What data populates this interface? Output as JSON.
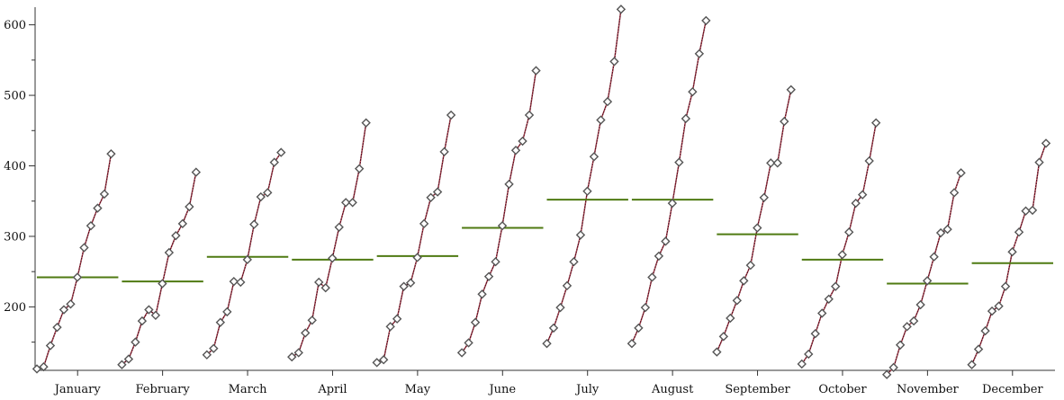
{
  "chart_data": {
    "type": "line",
    "title": "",
    "xlabel": "",
    "ylabel": "",
    "ylim": [
      110,
      625
    ],
    "y_ticks": [
      200,
      300,
      400,
      500,
      600
    ],
    "y_minor_ticks": [
      150,
      250,
      350,
      450,
      550
    ],
    "grid": false,
    "categories": [
      "January",
      "February",
      "March",
      "April",
      "May",
      "June",
      "July",
      "August",
      "September",
      "October",
      "November",
      "December"
    ],
    "colors": {
      "line": "#5a0a1e",
      "mean": "#4f7a12",
      "marker": "#555555"
    },
    "series": [
      {
        "values": [
          112,
          115,
          145,
          171,
          196,
          204,
          242,
          284,
          315,
          340,
          360,
          417
        ],
        "mean": 242
      },
      {
        "values": [
          118,
          126,
          150,
          180,
          196,
          188,
          233,
          277,
          301,
          318,
          342,
          391
        ],
        "mean": 236
      },
      {
        "values": [
          132,
          141,
          178,
          193,
          236,
          235,
          267,
          317,
          356,
          362,
          405,
          419
        ],
        "mean": 271
      },
      {
        "values": [
          129,
          135,
          163,
          181,
          235,
          227,
          269,
          313,
          348,
          348,
          396,
          461
        ],
        "mean": 267
      },
      {
        "values": [
          121,
          125,
          172,
          183,
          229,
          234,
          270,
          318,
          355,
          363,
          420,
          472
        ],
        "mean": 272
      },
      {
        "values": [
          135,
          149,
          178,
          218,
          243,
          264,
          315,
          374,
          422,
          435,
          472,
          535
        ],
        "mean": 312
      },
      {
        "values": [
          148,
          170,
          199,
          230,
          264,
          302,
          364,
          413,
          465,
          491,
          548,
          622
        ],
        "mean": 352
      },
      {
        "values": [
          148,
          170,
          199,
          242,
          272,
          293,
          347,
          405,
          467,
          505,
          559,
          606
        ],
        "mean": 352
      },
      {
        "values": [
          136,
          158,
          184,
          209,
          237,
          259,
          312,
          355,
          404,
          404,
          463,
          508
        ],
        "mean": 303
      },
      {
        "values": [
          119,
          133,
          162,
          191,
          211,
          229,
          274,
          306,
          347,
          359,
          407,
          461
        ],
        "mean": 267
      },
      {
        "values": [
          104,
          114,
          146,
          172,
          180,
          203,
          237,
          271,
          305,
          310,
          362,
          390
        ],
        "mean": 233
      },
      {
        "values": [
          118,
          140,
          166,
          194,
          201,
          229,
          278,
          306,
          336,
          337,
          405,
          432
        ],
        "mean": 262
      }
    ]
  }
}
